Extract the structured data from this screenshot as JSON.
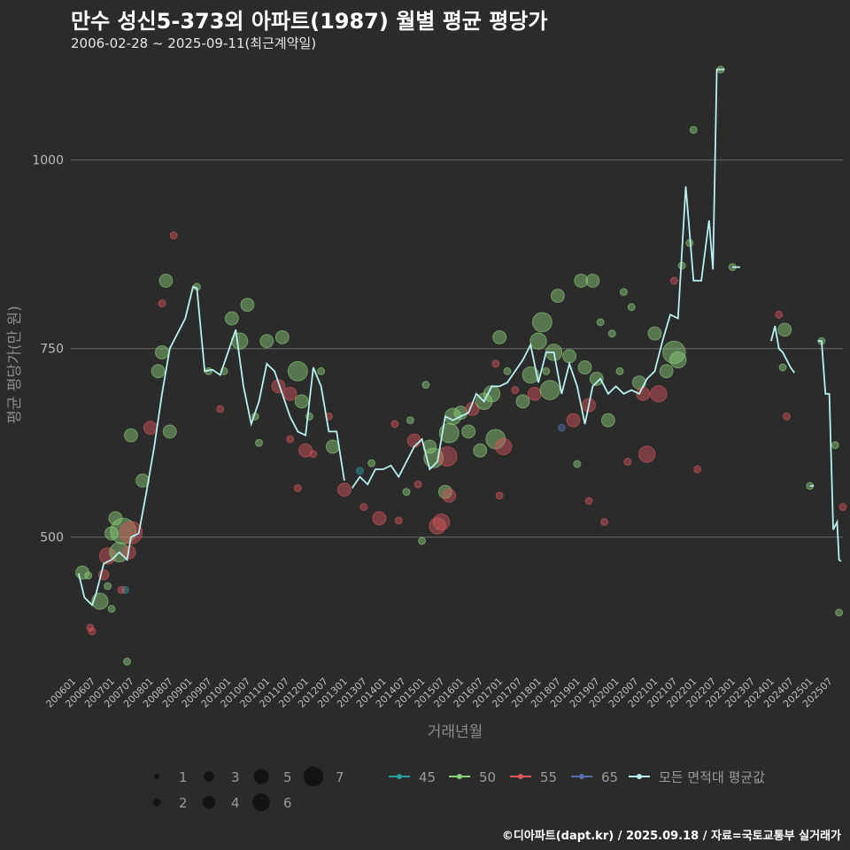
{
  "title": "만수 성신5-373외 아파트(1987) 월별 평균 평당가",
  "subtitle": "2006-02-28 ~ 2025-09-11(최근계약일)",
  "footer": "©디아파트(dapt.kr) / 2025.09.18 / 자료=국토교통부 실거래가",
  "colors": {
    "45": "#2a9d9d",
    "50": "#8fd07a",
    "55": "#d9565a",
    "65": "#5a6fb0",
    "avg": "#b8f0ee",
    "grid": "#6a6a6a",
    "bg": "#2b2b2c"
  },
  "chart_data": {
    "type": "scatter",
    "title": "만수 성신5-373외 아파트(1987) 월별 평균 평당가",
    "xlabel": "거래년월",
    "ylabel": "평균 평당가(만 원)",
    "ylim": [
      320,
      1130
    ],
    "xlim": [
      2005.95,
      2025.85
    ],
    "yticks": [
      500,
      750,
      1000
    ],
    "xticks": [
      "200601",
      "200607",
      "200701",
      "200707",
      "200801",
      "200807",
      "200901",
      "200907",
      "201001",
      "201007",
      "201101",
      "201107",
      "201201",
      "201207",
      "201301",
      "201307",
      "201401",
      "201407",
      "201501",
      "201507",
      "201601",
      "201607",
      "201701",
      "201707",
      "201801",
      "201807",
      "201901",
      "201907",
      "202001",
      "202007",
      "202101",
      "202107",
      "202201",
      "202207",
      "202301",
      "202307",
      "202401",
      "202407",
      "202501",
      "202507"
    ],
    "size_legend": [
      "1",
      "2",
      "3",
      "4",
      "5",
      "6",
      "7"
    ],
    "color_legend": [
      {
        "key": "45",
        "label": "45"
      },
      {
        "key": "50",
        "label": "50"
      },
      {
        "key": "55",
        "label": "55"
      },
      {
        "key": "65",
        "label": "65"
      },
      {
        "key": "avg",
        "label": "모든 면적대 평균값"
      }
    ],
    "series_avg": [
      [
        2006.15,
        452
      ],
      [
        2006.3,
        420
      ],
      [
        2006.5,
        410
      ],
      [
        2006.6,
        425
      ],
      [
        2006.8,
        465
      ],
      [
        2007.0,
        470
      ],
      [
        2007.2,
        480
      ],
      [
        2007.4,
        470
      ],
      [
        2007.5,
        500
      ],
      [
        2007.7,
        505
      ],
      [
        2007.9,
        560
      ],
      [
        2008.1,
        620
      ],
      [
        2008.3,
        690
      ],
      [
        2008.5,
        750
      ],
      [
        2008.7,
        770
      ],
      [
        2008.9,
        790
      ],
      [
        2009.1,
        832
      ],
      [
        2009.2,
        830
      ],
      [
        2009.4,
        720
      ],
      [
        2009.6,
        722
      ],
      [
        2009.8,
        715
      ],
      [
        2010.0,
        745
      ],
      [
        2010.2,
        775
      ],
      [
        2010.4,
        700
      ],
      [
        2010.6,
        650
      ],
      [
        2010.8,
        680
      ],
      [
        2011.0,
        730
      ],
      [
        2011.2,
        720
      ],
      [
        2011.4,
        690
      ],
      [
        2011.6,
        660
      ],
      [
        2011.8,
        640
      ],
      [
        2012.0,
        635
      ],
      [
        2012.2,
        725
      ],
      [
        2012.4,
        700
      ],
      [
        2012.6,
        640
      ],
      [
        2012.8,
        640
      ],
      [
        2013.0,
        575
      ],
      null,
      [
        2013.2,
        565
      ],
      [
        2013.4,
        580
      ],
      [
        2013.6,
        570
      ],
      [
        2013.8,
        590
      ],
      [
        2014.0,
        590
      ],
      [
        2014.2,
        595
      ],
      [
        2014.4,
        580
      ],
      [
        2014.6,
        600
      ],
      [
        2014.8,
        620
      ],
      [
        2015.0,
        630
      ],
      [
        2015.2,
        590
      ],
      [
        2015.4,
        600
      ],
      [
        2015.6,
        660
      ],
      [
        2015.8,
        655
      ],
      [
        2016.0,
        660
      ],
      [
        2016.2,
        665
      ],
      [
        2016.4,
        690
      ],
      [
        2016.6,
        680
      ],
      [
        2016.8,
        700
      ],
      [
        2017.0,
        700
      ],
      [
        2017.2,
        705
      ],
      [
        2017.4,
        720
      ],
      [
        2017.6,
        735
      ],
      [
        2017.8,
        755
      ],
      [
        2018.0,
        705
      ],
      [
        2018.2,
        745
      ],
      [
        2018.4,
        745
      ],
      [
        2018.6,
        690
      ],
      [
        2018.8,
        730
      ],
      [
        2019.0,
        700
      ],
      [
        2019.2,
        650
      ],
      [
        2019.4,
        700
      ],
      [
        2019.6,
        710
      ],
      [
        2019.8,
        690
      ],
      [
        2020.0,
        700
      ],
      [
        2020.2,
        690
      ],
      [
        2020.4,
        695
      ],
      [
        2020.6,
        690
      ],
      [
        2020.8,
        710
      ],
      [
        2021.0,
        720
      ],
      [
        2021.2,
        760
      ],
      [
        2021.4,
        795
      ],
      [
        2021.6,
        790
      ],
      [
        2021.8,
        965
      ],
      [
        2022.0,
        840
      ],
      [
        2022.2,
        840
      ],
      [
        2022.4,
        920
      ],
      [
        2022.5,
        855
      ],
      [
        2022.6,
        1120
      ],
      [
        2022.8,
        1120
      ],
      null,
      [
        2023.0,
        858
      ],
      [
        2023.2,
        858
      ],
      null,
      [
        2024.0,
        760
      ],
      [
        2024.1,
        780
      ],
      [
        2024.2,
        750
      ],
      [
        2024.3,
        745
      ],
      [
        2024.5,
        725
      ],
      [
        2024.6,
        718
      ],
      null,
      [
        2025.0,
        568
      ],
      [
        2025.1,
        568
      ],
      null,
      [
        2025.2,
        760
      ],
      [
        2025.3,
        760
      ],
      [
        2025.4,
        690
      ],
      [
        2025.5,
        690
      ],
      [
        2025.6,
        510
      ],
      [
        2025.7,
        520
      ],
      [
        2025.75,
        470
      ],
      [
        2025.8,
        468
      ]
    ],
    "points": [
      {
        "x": 2006.25,
        "y": 453,
        "s": 3,
        "c": "50"
      },
      {
        "x": 2006.4,
        "y": 449,
        "s": 1,
        "c": "50"
      },
      {
        "x": 2006.45,
        "y": 380,
        "s": 1,
        "c": "55"
      },
      {
        "x": 2006.5,
        "y": 375,
        "s": 1,
        "c": "55"
      },
      {
        "x": 2006.7,
        "y": 415,
        "s": 4,
        "c": "50"
      },
      {
        "x": 2006.8,
        "y": 450,
        "s": 2,
        "c": "55"
      },
      {
        "x": 2006.9,
        "y": 475,
        "s": 4,
        "c": "55"
      },
      {
        "x": 2007.0,
        "y": 505,
        "s": 3,
        "c": "50"
      },
      {
        "x": 2007.1,
        "y": 525,
        "s": 3,
        "c": "50"
      },
      {
        "x": 2007.2,
        "y": 480,
        "s": 5,
        "c": "50"
      },
      {
        "x": 2007.3,
        "y": 508,
        "s": 7,
        "c": "50"
      },
      {
        "x": 2007.35,
        "y": 430,
        "s": 1,
        "c": "45"
      },
      {
        "x": 2007.4,
        "y": 335,
        "s": 1,
        "c": "50"
      },
      {
        "x": 2007.5,
        "y": 506,
        "s": 6,
        "c": "55"
      },
      {
        "x": 2007.45,
        "y": 480,
        "s": 3,
        "c": "55"
      },
      {
        "x": 2007.5,
        "y": 635,
        "s": 3,
        "c": "50"
      },
      {
        "x": 2007.25,
        "y": 430,
        "s": 1,
        "c": "55"
      },
      {
        "x": 2006.9,
        "y": 435,
        "s": 1,
        "c": "50"
      },
      {
        "x": 2007.0,
        "y": 405,
        "s": 1,
        "c": "50"
      },
      {
        "x": 2007.8,
        "y": 575,
        "s": 3,
        "c": "50"
      },
      {
        "x": 2008.0,
        "y": 645,
        "s": 3,
        "c": "55"
      },
      {
        "x": 2008.2,
        "y": 720,
        "s": 3,
        "c": "50"
      },
      {
        "x": 2008.3,
        "y": 745,
        "s": 3,
        "c": "50"
      },
      {
        "x": 2008.4,
        "y": 840,
        "s": 3,
        "c": "50"
      },
      {
        "x": 2008.6,
        "y": 900,
        "s": 1,
        "c": "55"
      },
      {
        "x": 2008.5,
        "y": 640,
        "s": 3,
        "c": "50"
      },
      {
        "x": 2008.3,
        "y": 810,
        "s": 1,
        "c": "55"
      },
      {
        "x": 2009.2,
        "y": 832,
        "s": 1,
        "c": "50"
      },
      {
        "x": 2009.5,
        "y": 720,
        "s": 1,
        "c": "50"
      },
      {
        "x": 2009.9,
        "y": 720,
        "s": 1,
        "c": "50"
      },
      {
        "x": 2009.8,
        "y": 670,
        "s": 1,
        "c": "55"
      },
      {
        "x": 2010.1,
        "y": 790,
        "s": 3,
        "c": "50"
      },
      {
        "x": 2010.3,
        "y": 760,
        "s": 4,
        "c": "50"
      },
      {
        "x": 2010.5,
        "y": 808,
        "s": 3,
        "c": "50"
      },
      {
        "x": 2010.7,
        "y": 660,
        "s": 1,
        "c": "50"
      },
      {
        "x": 2010.8,
        "y": 625,
        "s": 1,
        "c": "50"
      },
      {
        "x": 2011.0,
        "y": 760,
        "s": 3,
        "c": "50"
      },
      {
        "x": 2011.3,
        "y": 700,
        "s": 3,
        "c": "55"
      },
      {
        "x": 2011.4,
        "y": 765,
        "s": 3,
        "c": "50"
      },
      {
        "x": 2011.6,
        "y": 690,
        "s": 3,
        "c": "55"
      },
      {
        "x": 2011.8,
        "y": 720,
        "s": 5,
        "c": "50"
      },
      {
        "x": 2011.9,
        "y": 680,
        "s": 3,
        "c": "50"
      },
      {
        "x": 2011.8,
        "y": 565,
        "s": 1,
        "c": "55"
      },
      {
        "x": 2011.6,
        "y": 630,
        "s": 1,
        "c": "55"
      },
      {
        "x": 2012.0,
        "y": 615,
        "s": 3,
        "c": "55"
      },
      {
        "x": 2012.1,
        "y": 660,
        "s": 1,
        "c": "50"
      },
      {
        "x": 2012.2,
        "y": 610,
        "s": 1,
        "c": "55"
      },
      {
        "x": 2012.4,
        "y": 720,
        "s": 1,
        "c": "50"
      },
      {
        "x": 2012.7,
        "y": 620,
        "s": 3,
        "c": "50"
      },
      {
        "x": 2012.6,
        "y": 660,
        "s": 1,
        "c": "55"
      },
      {
        "x": 2013.0,
        "y": 563,
        "s": 3,
        "c": "55"
      },
      {
        "x": 2013.4,
        "y": 588,
        "s": 1,
        "c": "45"
      },
      {
        "x": 2013.5,
        "y": 540,
        "s": 1,
        "c": "55"
      },
      {
        "x": 2013.7,
        "y": 598,
        "s": 1,
        "c": "50"
      },
      {
        "x": 2013.9,
        "y": 525,
        "s": 3,
        "c": "55"
      },
      {
        "x": 2014.3,
        "y": 650,
        "s": 1,
        "c": "55"
      },
      {
        "x": 2014.4,
        "y": 522,
        "s": 1,
        "c": "55"
      },
      {
        "x": 2014.6,
        "y": 560,
        "s": 1,
        "c": "50"
      },
      {
        "x": 2014.7,
        "y": 655,
        "s": 1,
        "c": "50"
      },
      {
        "x": 2014.8,
        "y": 628,
        "s": 3,
        "c": "55"
      },
      {
        "x": 2014.9,
        "y": 570,
        "s": 1,
        "c": "55"
      },
      {
        "x": 2015.0,
        "y": 495,
        "s": 1,
        "c": "50"
      },
      {
        "x": 2015.1,
        "y": 702,
        "s": 1,
        "c": "50"
      },
      {
        "x": 2015.2,
        "y": 620,
        "s": 3,
        "c": "50"
      },
      {
        "x": 2015.3,
        "y": 605,
        "s": 5,
        "c": "50"
      },
      {
        "x": 2015.4,
        "y": 515,
        "s": 4,
        "c": "55"
      },
      {
        "x": 2015.5,
        "y": 520,
        "s": 4,
        "c": "55"
      },
      {
        "x": 2015.6,
        "y": 560,
        "s": 3,
        "c": "50"
      },
      {
        "x": 2015.7,
        "y": 555,
        "s": 3,
        "c": "55"
      },
      {
        "x": 2015.8,
        "y": 660,
        "s": 4,
        "c": "50"
      },
      {
        "x": 2015.65,
        "y": 607,
        "s": 5,
        "c": "55"
      },
      {
        "x": 2015.7,
        "y": 638,
        "s": 5,
        "c": "50"
      },
      {
        "x": 2016.0,
        "y": 665,
        "s": 3,
        "c": "50"
      },
      {
        "x": 2016.2,
        "y": 640,
        "s": 3,
        "c": "50"
      },
      {
        "x": 2016.3,
        "y": 670,
        "s": 3,
        "c": "55"
      },
      {
        "x": 2016.5,
        "y": 615,
        "s": 3,
        "c": "50"
      },
      {
        "x": 2016.6,
        "y": 680,
        "s": 4,
        "c": "50"
      },
      {
        "x": 2016.8,
        "y": 690,
        "s": 4,
        "c": "50"
      },
      {
        "x": 2016.9,
        "y": 630,
        "s": 5,
        "c": "50"
      },
      {
        "x": 2017.0,
        "y": 765,
        "s": 3,
        "c": "50"
      },
      {
        "x": 2017.1,
        "y": 620,
        "s": 4,
        "c": "55"
      },
      {
        "x": 2017.2,
        "y": 720,
        "s": 1,
        "c": "50"
      },
      {
        "x": 2016.9,
        "y": 730,
        "s": 1,
        "c": "55"
      },
      {
        "x": 2017.0,
        "y": 555,
        "s": 1,
        "c": "55"
      },
      {
        "x": 2017.4,
        "y": 695,
        "s": 1,
        "c": "55"
      },
      {
        "x": 2017.6,
        "y": 680,
        "s": 3,
        "c": "50"
      },
      {
        "x": 2017.8,
        "y": 715,
        "s": 4,
        "c": "50"
      },
      {
        "x": 2017.9,
        "y": 690,
        "s": 3,
        "c": "55"
      },
      {
        "x": 2018.0,
        "y": 760,
        "s": 4,
        "c": "50"
      },
      {
        "x": 2018.1,
        "y": 785,
        "s": 5,
        "c": "50"
      },
      {
        "x": 2018.2,
        "y": 720,
        "s": 1,
        "c": "50"
      },
      {
        "x": 2018.3,
        "y": 695,
        "s": 5,
        "c": "50"
      },
      {
        "x": 2018.4,
        "y": 745,
        "s": 4,
        "c": "50"
      },
      {
        "x": 2018.5,
        "y": 820,
        "s": 3,
        "c": "50"
      },
      {
        "x": 2018.6,
        "y": 645,
        "s": 1,
        "c": "65"
      },
      {
        "x": 2018.8,
        "y": 740,
        "s": 3,
        "c": "50"
      },
      {
        "x": 2018.9,
        "y": 655,
        "s": 3,
        "c": "55"
      },
      {
        "x": 2019.0,
        "y": 597,
        "s": 1,
        "c": "50"
      },
      {
        "x": 2019.1,
        "y": 840,
        "s": 3,
        "c": "50"
      },
      {
        "x": 2019.2,
        "y": 725,
        "s": 3,
        "c": "50"
      },
      {
        "x": 2019.3,
        "y": 675,
        "s": 3,
        "c": "55"
      },
      {
        "x": 2019.4,
        "y": 840,
        "s": 3,
        "c": "50"
      },
      {
        "x": 2019.5,
        "y": 710,
        "s": 3,
        "c": "50"
      },
      {
        "x": 2019.3,
        "y": 548,
        "s": 1,
        "c": "55"
      },
      {
        "x": 2019.7,
        "y": 520,
        "s": 1,
        "c": "55"
      },
      {
        "x": 2019.8,
        "y": 655,
        "s": 3,
        "c": "50"
      },
      {
        "x": 2019.6,
        "y": 785,
        "s": 1,
        "c": "50"
      },
      {
        "x": 2019.9,
        "y": 770,
        "s": 1,
        "c": "50"
      },
      {
        "x": 2020.1,
        "y": 720,
        "s": 1,
        "c": "50"
      },
      {
        "x": 2020.3,
        "y": 600,
        "s": 1,
        "c": "55"
      },
      {
        "x": 2020.2,
        "y": 825,
        "s": 1,
        "c": "50"
      },
      {
        "x": 2020.4,
        "y": 805,
        "s": 1,
        "c": "50"
      },
      {
        "x": 2020.6,
        "y": 705,
        "s": 3,
        "c": "50"
      },
      {
        "x": 2020.7,
        "y": 690,
        "s": 3,
        "c": "55"
      },
      {
        "x": 2020.8,
        "y": 610,
        "s": 4,
        "c": "55"
      },
      {
        "x": 2021.0,
        "y": 770,
        "s": 3,
        "c": "50"
      },
      {
        "x": 2021.1,
        "y": 690,
        "s": 4,
        "c": "55"
      },
      {
        "x": 2021.3,
        "y": 720,
        "s": 3,
        "c": "50"
      },
      {
        "x": 2021.5,
        "y": 745,
        "s": 6,
        "c": "50"
      },
      {
        "x": 2021.6,
        "y": 735,
        "s": 4,
        "c": "50"
      },
      {
        "x": 2021.5,
        "y": 840,
        "s": 1,
        "c": "55"
      },
      {
        "x": 2021.7,
        "y": 860,
        "s": 1,
        "c": "50"
      },
      {
        "x": 2021.9,
        "y": 890,
        "s": 1,
        "c": "50"
      },
      {
        "x": 2022.0,
        "y": 1040,
        "s": 1,
        "c": "50"
      },
      {
        "x": 2022.1,
        "y": 590,
        "s": 1,
        "c": "55"
      },
      {
        "x": 2022.7,
        "y": 1120,
        "s": 1,
        "c": "50"
      },
      {
        "x": 2023.0,
        "y": 858,
        "s": 1,
        "c": "50"
      },
      {
        "x": 2024.2,
        "y": 795,
        "s": 1,
        "c": "55"
      },
      {
        "x": 2024.35,
        "y": 775,
        "s": 3,
        "c": "50"
      },
      {
        "x": 2024.3,
        "y": 725,
        "s": 1,
        "c": "50"
      },
      {
        "x": 2024.4,
        "y": 660,
        "s": 1,
        "c": "55"
      },
      {
        "x": 2025.0,
        "y": 568,
        "s": 1,
        "c": "50"
      },
      {
        "x": 2025.3,
        "y": 760,
        "s": 1,
        "c": "50"
      },
      {
        "x": 2025.65,
        "y": 622,
        "s": 1,
        "c": "50"
      },
      {
        "x": 2025.75,
        "y": 400,
        "s": 1,
        "c": "50"
      },
      {
        "x": 2025.85,
        "y": 540,
        "s": 1,
        "c": "55"
      }
    ]
  }
}
